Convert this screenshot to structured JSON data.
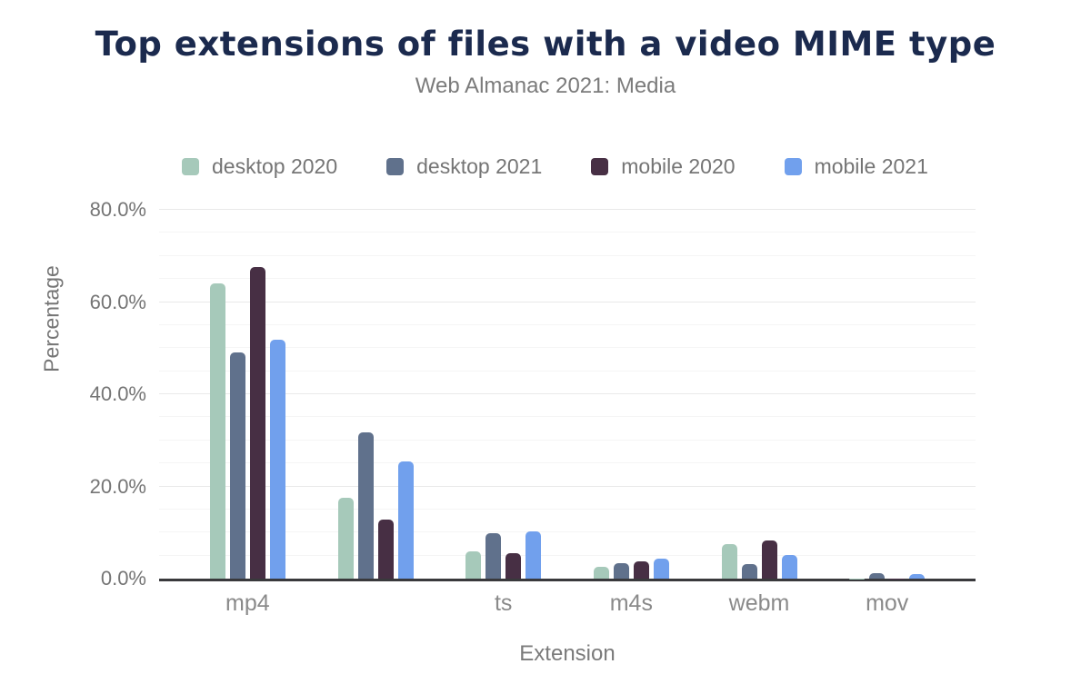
{
  "title": "Top extensions of files with a video MIME type",
  "subtitle": "Web Almanac 2021: Media",
  "y_axis_title": "Percentage",
  "x_axis_title": "Extension",
  "chart_data": {
    "type": "bar",
    "title": "Top extensions of files with a video MIME type",
    "subtitle": "Web Almanac 2021: Media",
    "xlabel": "Extension",
    "ylabel": "Percentage",
    "ylim": [
      0,
      80
    ],
    "grid": "on",
    "legend_position": "top-left",
    "yticks": [
      {
        "value": 0,
        "label": "0.0%"
      },
      {
        "value": 20,
        "label": "20.0%"
      },
      {
        "value": 40,
        "label": "40.0%"
      },
      {
        "value": 60,
        "label": "60.0%"
      },
      {
        "value": 80,
        "label": "80.0%"
      }
    ],
    "ygrid": {
      "minor_step": 5,
      "major_step": 20
    },
    "categories": [
      "mp4",
      "",
      "ts",
      "m4s",
      "webm",
      "mov"
    ],
    "series": [
      {
        "name": "desktop 2020",
        "color": "#a6c9ba",
        "values": [
          64.0,
          17.6,
          5.9,
          2.5,
          7.5,
          0.1
        ]
      },
      {
        "name": "desktop 2021",
        "color": "#60718c",
        "values": [
          49.0,
          31.8,
          9.9,
          3.3,
          3.2,
          1.1
        ]
      },
      {
        "name": "mobile 2020",
        "color": "#472f44",
        "values": [
          67.5,
          12.9,
          5.5,
          3.7,
          8.3,
          0.1
        ]
      },
      {
        "name": "mobile 2021",
        "color": "#71a0ed",
        "values": [
          51.8,
          25.5,
          10.3,
          4.4,
          5.2,
          0.9
        ]
      }
    ]
  }
}
